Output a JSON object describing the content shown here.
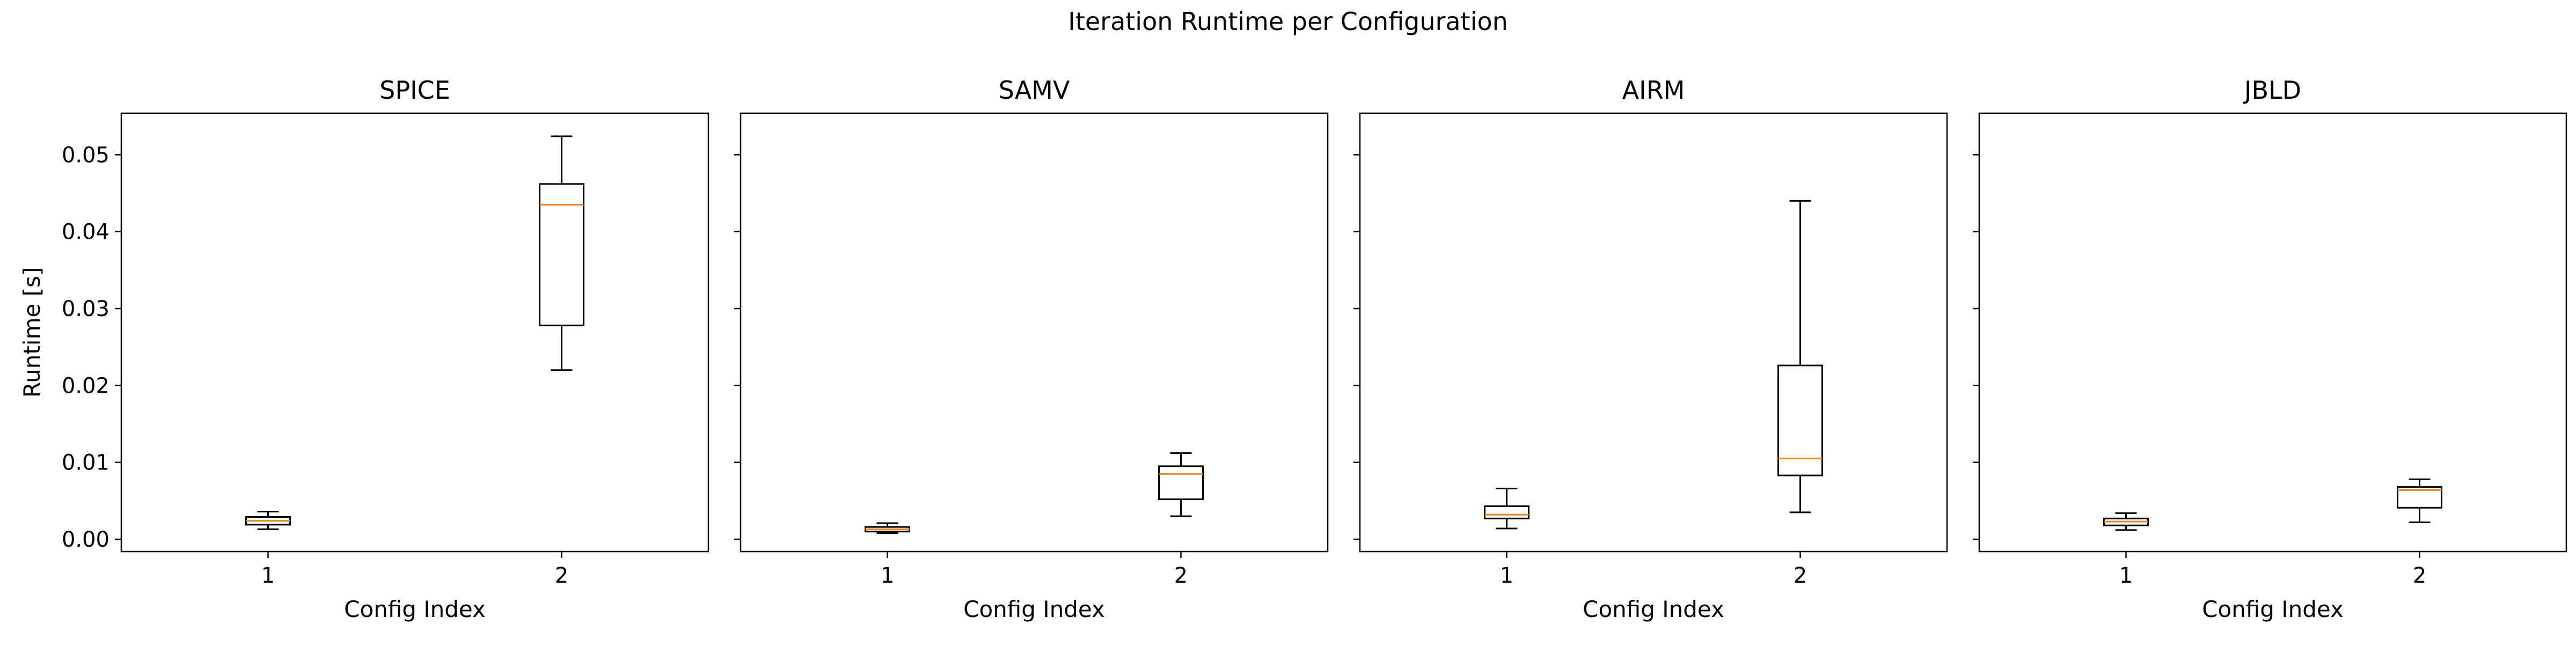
{
  "suptitle": "Iteration Runtime per Configuration",
  "colors": {
    "box": "#000000",
    "median": "#ff7f0e",
    "background": "#ffffff"
  },
  "chart_data": [
    {
      "type": "box",
      "title": "SPICE",
      "xlabel": "Config Index",
      "ylabel": "Runtime [s]",
      "categories": [
        "1",
        "2"
      ],
      "ylim": [
        -0.0016,
        0.0554
      ],
      "yticks": [
        0.0,
        0.01,
        0.02,
        0.03,
        0.04,
        0.05
      ],
      "ytick_labels": [
        "0.00",
        "0.01",
        "0.02",
        "0.03",
        "0.04",
        "0.05"
      ],
      "boxes": [
        {
          "whisker_low": 0.0013,
          "q1": 0.0019,
          "median": 0.0024,
          "q3": 0.0029,
          "whisker_high": 0.0036
        },
        {
          "whisker_low": 0.022,
          "q1": 0.0278,
          "median": 0.0435,
          "q3": 0.0462,
          "whisker_high": 0.0524
        }
      ]
    },
    {
      "type": "box",
      "title": "SAMV",
      "xlabel": "Config Index",
      "ylabel": "",
      "categories": [
        "1",
        "2"
      ],
      "ylim": [
        -0.0016,
        0.0554
      ],
      "yticks": [
        0.0,
        0.01,
        0.02,
        0.03,
        0.04,
        0.05
      ],
      "ytick_labels": [],
      "boxes": [
        {
          "whisker_low": 0.0008,
          "q1": 0.001,
          "median": 0.0013,
          "q3": 0.0016,
          "whisker_high": 0.0021
        },
        {
          "whisker_low": 0.003,
          "q1": 0.0052,
          "median": 0.0085,
          "q3": 0.0095,
          "whisker_high": 0.0112
        }
      ]
    },
    {
      "type": "box",
      "title": "AIRM",
      "xlabel": "Config Index",
      "ylabel": "",
      "categories": [
        "1",
        "2"
      ],
      "ylim": [
        -0.0016,
        0.0554
      ],
      "yticks": [
        0.0,
        0.01,
        0.02,
        0.03,
        0.04,
        0.05
      ],
      "ytick_labels": [],
      "boxes": [
        {
          "whisker_low": 0.0014,
          "q1": 0.0027,
          "median": 0.0032,
          "q3": 0.0043,
          "whisker_high": 0.0066
        },
        {
          "whisker_low": 0.0035,
          "q1": 0.0083,
          "median": 0.0105,
          "q3": 0.0226,
          "whisker_high": 0.044
        }
      ]
    },
    {
      "type": "box",
      "title": "JBLD",
      "xlabel": "Config Index",
      "ylabel": "",
      "categories": [
        "1",
        "2"
      ],
      "ylim": [
        -0.0016,
        0.0554
      ],
      "yticks": [
        0.0,
        0.01,
        0.02,
        0.03,
        0.04,
        0.05
      ],
      "ytick_labels": [],
      "boxes": [
        {
          "whisker_low": 0.0012,
          "q1": 0.0018,
          "median": 0.0023,
          "q3": 0.0027,
          "whisker_high": 0.0034
        },
        {
          "whisker_low": 0.0022,
          "q1": 0.0041,
          "median": 0.0064,
          "q3": 0.0068,
          "whisker_high": 0.0078
        }
      ]
    }
  ]
}
